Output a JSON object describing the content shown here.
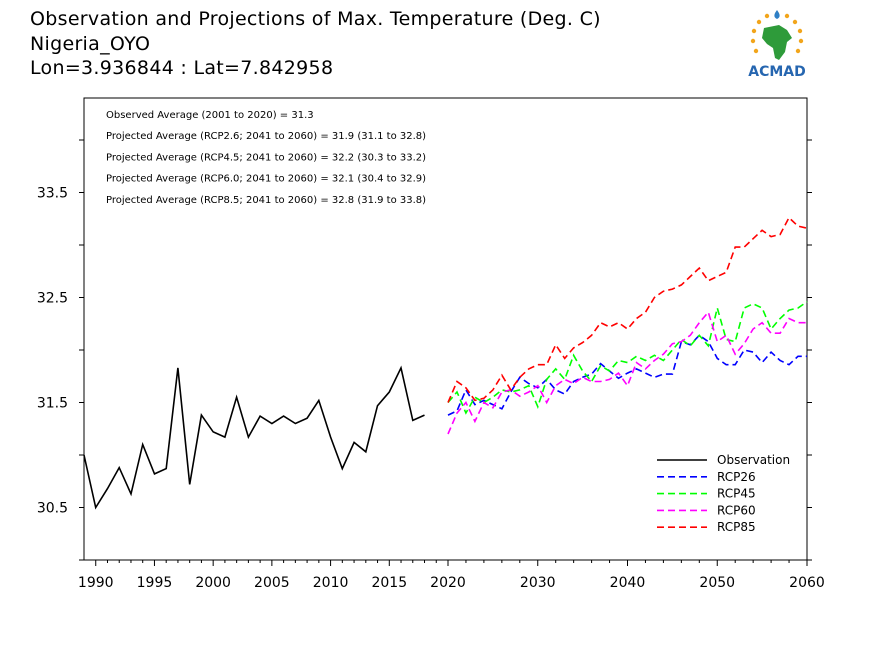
{
  "header": {
    "title": "Observation and Projections of Max. Temperature (Deg. C)",
    "location": "Nigeria_OYO",
    "coords": "Lon=3.936844 : Lat=7.842958"
  },
  "logo": {
    "text": "ACMAD"
  },
  "annotations": [
    "Observed Average (2001 to 2020) = 31.3",
    "Projected Average (RCP2.6; 2041 to 2060) = 31.9 (31.1 to 32.8)",
    "Projected Average (RCP4.5; 2041 to 2060) = 32.2 (30.3 to 33.2)",
    "Projected Average (RCP6.0; 2041 to 2060) = 32.1 (30.4 to 32.9)",
    "Projected Average (RCP8.5; 2041 to 2060) = 32.8 (31.9 to 33.8)"
  ],
  "colors": {
    "Observation": "#000000",
    "RCP26": "#0000ff",
    "RCP45": "#00ff00",
    "RCP60": "#ff00ff",
    "RCP85": "#ff0000"
  },
  "chart_data": {
    "type": "line",
    "xlim": [
      1989,
      2060
    ],
    "ylim": [
      30.0,
      34.4
    ],
    "x_ticks": [
      "1990",
      "1995",
      "2000",
      "2005",
      "2010",
      "2015",
      "2020",
      "2030",
      "2040",
      "2050",
      "2060"
    ],
    "y_ticks": [
      "30.5",
      "31.5",
      "32.5",
      "33.5"
    ],
    "legend": {
      "placement": "bottom-right",
      "entries": [
        "Observation",
        "RCP26",
        "RCP45",
        "RCP60",
        "RCP85"
      ]
    },
    "grid": false,
    "series": [
      {
        "name": "Observation",
        "style": "solid",
        "x_start": 1989,
        "values": [
          31.0,
          30.5,
          30.68,
          30.88,
          30.63,
          31.1,
          30.82,
          30.87,
          31.83,
          30.72,
          31.38,
          31.22,
          31.17,
          31.55,
          31.17,
          31.37,
          31.3,
          31.37,
          31.3,
          31.35,
          31.52,
          31.17,
          30.87,
          31.12,
          31.03,
          31.47,
          31.6,
          31.83,
          31.33,
          31.38
        ]
      },
      {
        "name": "RCP26",
        "style": "dashed",
        "x_start": 2020,
        "values": [
          31.38,
          31.42,
          31.62,
          31.48,
          31.52,
          31.48,
          31.44,
          31.6,
          31.74,
          31.68,
          31.64,
          31.72,
          31.62,
          31.58,
          31.7,
          31.74,
          31.77,
          31.87,
          31.8,
          31.73,
          31.78,
          31.82,
          31.78,
          31.74,
          31.77,
          31.77,
          32.08,
          32.05,
          32.14,
          32.08,
          31.92,
          31.86,
          31.86,
          32.0,
          31.98,
          31.88,
          31.98,
          31.9,
          31.86,
          31.94,
          31.94
        ]
      },
      {
        "name": "RCP45",
        "style": "dashed",
        "x_start": 2020,
        "values": [
          31.5,
          31.6,
          31.4,
          31.55,
          31.5,
          31.55,
          31.62,
          31.6,
          31.62,
          31.66,
          31.46,
          31.72,
          31.82,
          31.72,
          31.95,
          31.8,
          31.7,
          31.85,
          31.8,
          31.9,
          31.88,
          31.94,
          31.9,
          31.95,
          31.9,
          32.0,
          32.1,
          32.04,
          32.14,
          32.04,
          32.4,
          32.1,
          32.08,
          32.4,
          32.44,
          32.4,
          32.2,
          32.3,
          32.38,
          32.4,
          32.46
        ]
      },
      {
        "name": "RCP60",
        "style": "dashed",
        "x_start": 2020,
        "values": [
          31.2,
          31.4,
          31.5,
          31.32,
          31.5,
          31.45,
          31.6,
          31.62,
          31.56,
          31.6,
          31.66,
          31.5,
          31.66,
          31.72,
          31.68,
          31.74,
          31.7,
          31.7,
          31.72,
          31.78,
          31.66,
          31.88,
          31.82,
          31.9,
          31.96,
          32.06,
          32.08,
          32.14,
          32.26,
          32.36,
          32.08,
          32.14,
          31.96,
          32.06,
          32.2,
          32.26,
          32.16,
          32.16,
          32.3,
          32.26,
          32.26
        ]
      },
      {
        "name": "RCP85",
        "style": "dashed",
        "x_start": 2020,
        "values": [
          31.5,
          31.7,
          31.64,
          31.52,
          31.54,
          31.62,
          31.76,
          31.62,
          31.74,
          31.82,
          31.86,
          31.86,
          32.05,
          31.92,
          32.02,
          32.07,
          32.14,
          32.26,
          32.22,
          32.26,
          32.2,
          32.3,
          32.36,
          32.5,
          32.56,
          32.58,
          32.62,
          32.7,
          32.78,
          32.66,
          32.7,
          32.74,
          32.98,
          32.98,
          33.06,
          33.14,
          33.08,
          33.1,
          33.26,
          33.18,
          33.16
        ]
      }
    ]
  }
}
